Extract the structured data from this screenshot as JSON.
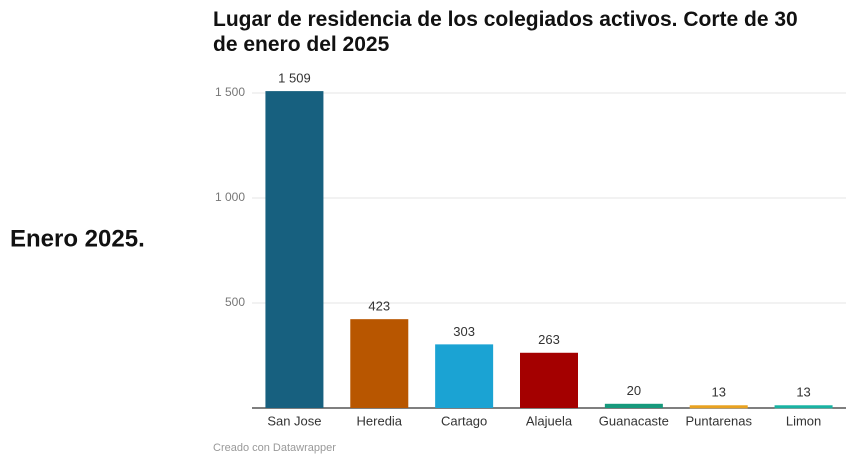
{
  "side_label": "Enero 2025.",
  "chart_data": {
    "type": "bar",
    "title": "Lugar de residencia de los colegiados activos. Corte de 30 de enero del 2025",
    "categories": [
      "San Jose",
      "Heredia",
      "Cartago",
      "Alajuela",
      "Guanacaste",
      "Puntarenas",
      "Limon"
    ],
    "values": [
      1509,
      423,
      303,
      263,
      20,
      13,
      13
    ],
    "value_labels": [
      "1 509",
      "423",
      "303",
      "263",
      "20",
      "13",
      "13"
    ],
    "colors": [
      "#17607f",
      "#b85600",
      "#1ba3d3",
      "#a40000",
      "#16997c",
      "#e9a21f",
      "#18b3a3"
    ],
    "ylim": [
      0,
      1500
    ],
    "yticks": [
      500,
      {
        "value": 1000,
        "label": "1 000"
      },
      {
        "value": 1500,
        "label": "1 500"
      }
    ],
    "grid": true,
    "footer": "Creado con Datawrapper"
  }
}
